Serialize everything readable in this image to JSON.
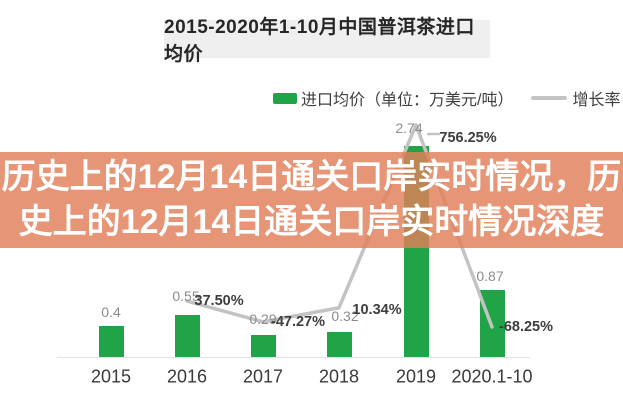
{
  "title": {
    "text": "2015-2020年1-10月中国普洱茶进口均价"
  },
  "legend": [
    {
      "label": "进口均价（单位：万美元/吨）",
      "swatch": "bar",
      "color": "#21a447"
    },
    {
      "label": "增长率（%）",
      "swatch": "line",
      "color": "#c3c3c3"
    }
  ],
  "banner": {
    "line1": "历史上的12月14日通关口岸实时情况，历",
    "line2": "史上的12月14日通关口岸实时情况深度",
    "bg": "rgba(224,127,88,0.82)",
    "text_color": "#ffffff"
  },
  "chart_data": {
    "type": "bar",
    "title": "2015-2020年1-10月中国普洱茶进口均价",
    "categories": [
      "2015",
      "2016",
      "2017",
      "2018",
      "2019",
      "2020.1-10"
    ],
    "series": [
      {
        "name": "进口均价（单位：万美元/吨）",
        "type": "bar",
        "values": [
          0.4,
          0.55,
          0.29,
          0.32,
          2.74,
          0.87
        ],
        "labels": [
          "0.4",
          "0.55",
          "0.29",
          "0.32",
          "2.74",
          "0.87"
        ],
        "color": "#21a447"
      },
      {
        "name": "增长率（%）",
        "type": "line",
        "values": [
          null,
          37.5,
          -47.27,
          10.34,
          756.25,
          -68.25
        ],
        "labels": [
          null,
          "37.50%",
          "-47.27%",
          "10.34%",
          "756.25%",
          "-68.25%"
        ],
        "color": "#c3c3c3"
      }
    ],
    "xlabel": "",
    "ylabel": "万美元/吨",
    "ylim": [
      0,
      3
    ],
    "grid": false,
    "legend_position": "top",
    "colors": {
      "value_label": "#8c8c8c",
      "pct_label": "#3d3d3d",
      "axis_line": "#e2e2e2",
      "title_box_bg": "#efefef"
    }
  }
}
